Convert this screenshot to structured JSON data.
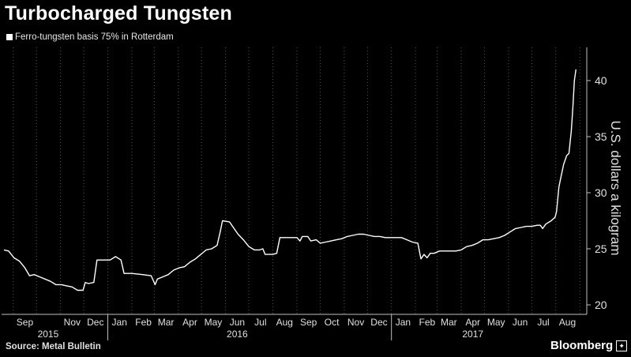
{
  "chart_data": {
    "type": "line",
    "title": "Turbocharged Tungsten",
    "subtitle": "",
    "ylabel": "U.S. dollars a kilogram",
    "xlabel": "",
    "ylim": [
      20,
      42
    ],
    "yticks": [
      20,
      25,
      30,
      35,
      40
    ],
    "ytick_labels": [
      "20",
      "25",
      "30",
      "35",
      "40"
    ],
    "grid": "vertical-dotted",
    "axis_side": "right",
    "month_labels": [
      "Sep",
      "Nov",
      "Dec",
      "Jan",
      "Feb",
      "Mar",
      "Apr",
      "May",
      "Jun",
      "Jul",
      "Aug",
      "Sep",
      "Oct",
      "Nov",
      "Dec",
      "Jan",
      "Feb",
      "Mar",
      "Apr",
      "May",
      "Jun",
      "Jul",
      "Aug"
    ],
    "month_dates": [
      "2015-09-01",
      "2015-11-01",
      "2015-12-01",
      "2016-01-01",
      "2016-02-01",
      "2016-03-01",
      "2016-04-01",
      "2016-05-01",
      "2016-06-01",
      "2016-07-01",
      "2016-08-01",
      "2016-09-01",
      "2016-10-01",
      "2016-11-01",
      "2016-12-01",
      "2017-01-01",
      "2017-02-01",
      "2017-03-01",
      "2017-04-01",
      "2017-05-01",
      "2017-06-01",
      "2017-07-01",
      "2017-08-01"
    ],
    "year_labels": [
      "2015",
      "2016",
      "2017"
    ],
    "year_label_dates": [
      "2015-10-16",
      "2016-06-16",
      "2017-04-16"
    ],
    "year_dividers": [
      "2016-01-01",
      "2017-01-01"
    ],
    "series": [
      {
        "name": "Ferro-tungsten basis 75% in Rotterdam",
        "color": "#ffffff",
        "points": [
          [
            "2015-08-20",
            24.9
          ],
          [
            "2015-08-26",
            24.8
          ],
          [
            "2015-09-02",
            24.2
          ],
          [
            "2015-09-09",
            23.9
          ],
          [
            "2015-09-16",
            23.3
          ],
          [
            "2015-09-22",
            22.6
          ],
          [
            "2015-09-28",
            22.7
          ],
          [
            "2015-10-05",
            22.5
          ],
          [
            "2015-10-12",
            22.3
          ],
          [
            "2015-10-19",
            22.1
          ],
          [
            "2015-10-26",
            21.8
          ],
          [
            "2015-11-02",
            21.8
          ],
          [
            "2015-11-09",
            21.7
          ],
          [
            "2015-11-16",
            21.6
          ],
          [
            "2015-11-23",
            21.3
          ],
          [
            "2015-11-30",
            21.3
          ],
          [
            "2015-12-03",
            22.0
          ],
          [
            "2015-12-07",
            21.9
          ],
          [
            "2015-12-14",
            22.0
          ],
          [
            "2015-12-18",
            24.0
          ],
          [
            "2015-12-28",
            24.0
          ],
          [
            "2016-01-04",
            24.0
          ],
          [
            "2016-01-11",
            24.3
          ],
          [
            "2016-01-18",
            24.0
          ],
          [
            "2016-01-22",
            22.8
          ],
          [
            "2016-02-01",
            22.8
          ],
          [
            "2016-02-15",
            22.7
          ],
          [
            "2016-02-26",
            22.6
          ],
          [
            "2016-03-02",
            21.8
          ],
          [
            "2016-03-05",
            22.3
          ],
          [
            "2016-03-12",
            22.5
          ],
          [
            "2016-03-19",
            22.7
          ],
          [
            "2016-03-26",
            23.1
          ],
          [
            "2016-04-02",
            23.3
          ],
          [
            "2016-04-09",
            23.4
          ],
          [
            "2016-04-16",
            23.8
          ],
          [
            "2016-04-23",
            24.1
          ],
          [
            "2016-04-30",
            24.5
          ],
          [
            "2016-05-07",
            24.9
          ],
          [
            "2016-05-14",
            25.0
          ],
          [
            "2016-05-21",
            25.3
          ],
          [
            "2016-05-25",
            26.5
          ],
          [
            "2016-05-28",
            27.5
          ],
          [
            "2016-06-06",
            27.4
          ],
          [
            "2016-06-10",
            27.0
          ],
          [
            "2016-06-17",
            26.3
          ],
          [
            "2016-06-24",
            25.8
          ],
          [
            "2016-07-01",
            25.2
          ],
          [
            "2016-07-08",
            24.9
          ],
          [
            "2016-07-15",
            24.9
          ],
          [
            "2016-07-19",
            25.0
          ],
          [
            "2016-07-22",
            24.5
          ],
          [
            "2016-08-01",
            24.5
          ],
          [
            "2016-08-06",
            24.6
          ],
          [
            "2016-08-10",
            26.0
          ],
          [
            "2016-08-17",
            26.0
          ],
          [
            "2016-08-24",
            26.0
          ],
          [
            "2016-09-01",
            26.0
          ],
          [
            "2016-09-05",
            25.7
          ],
          [
            "2016-09-08",
            26.1
          ],
          [
            "2016-09-15",
            26.1
          ],
          [
            "2016-09-19",
            25.7
          ],
          [
            "2016-09-26",
            25.8
          ],
          [
            "2016-10-01",
            25.5
          ],
          [
            "2016-10-08",
            25.6
          ],
          [
            "2016-10-15",
            25.7
          ],
          [
            "2016-10-22",
            25.8
          ],
          [
            "2016-10-29",
            25.9
          ],
          [
            "2016-11-05",
            26.1
          ],
          [
            "2016-11-12",
            26.2
          ],
          [
            "2016-11-19",
            26.3
          ],
          [
            "2016-11-26",
            26.3
          ],
          [
            "2016-12-03",
            26.2
          ],
          [
            "2016-12-10",
            26.1
          ],
          [
            "2016-12-17",
            26.1
          ],
          [
            "2016-12-24",
            26.0
          ],
          [
            "2016-12-31",
            26.0
          ],
          [
            "2017-01-07",
            26.0
          ],
          [
            "2017-01-14",
            26.0
          ],
          [
            "2017-01-21",
            25.8
          ],
          [
            "2017-01-28",
            25.6
          ],
          [
            "2017-02-04",
            25.5
          ],
          [
            "2017-02-08",
            24.1
          ],
          [
            "2017-02-12",
            24.5
          ],
          [
            "2017-02-16",
            24.2
          ],
          [
            "2017-02-20",
            24.6
          ],
          [
            "2017-02-25",
            24.6
          ],
          [
            "2017-03-04",
            24.8
          ],
          [
            "2017-03-11",
            24.8
          ],
          [
            "2017-03-18",
            24.8
          ],
          [
            "2017-03-25",
            24.8
          ],
          [
            "2017-04-01",
            24.9
          ],
          [
            "2017-04-08",
            25.2
          ],
          [
            "2017-04-15",
            25.3
          ],
          [
            "2017-04-22",
            25.5
          ],
          [
            "2017-04-29",
            25.8
          ],
          [
            "2017-05-06",
            25.8
          ],
          [
            "2017-05-13",
            25.9
          ],
          [
            "2017-05-20",
            26.0
          ],
          [
            "2017-05-27",
            26.2
          ],
          [
            "2017-06-03",
            26.5
          ],
          [
            "2017-06-10",
            26.8
          ],
          [
            "2017-06-17",
            26.9
          ],
          [
            "2017-06-24",
            27.0
          ],
          [
            "2017-07-01",
            27.0
          ],
          [
            "2017-07-08",
            27.1
          ],
          [
            "2017-07-12",
            27.1
          ],
          [
            "2017-07-15",
            26.8
          ],
          [
            "2017-07-19",
            27.2
          ],
          [
            "2017-07-26",
            27.5
          ],
          [
            "2017-07-31",
            27.8
          ],
          [
            "2017-08-02",
            28.3
          ],
          [
            "2017-08-05",
            30.5
          ],
          [
            "2017-08-08",
            31.5
          ],
          [
            "2017-08-11",
            32.5
          ],
          [
            "2017-08-15",
            33.3
          ],
          [
            "2017-08-18",
            33.5
          ],
          [
            "2017-08-21",
            35.5
          ],
          [
            "2017-08-23",
            37.5
          ],
          [
            "2017-08-25",
            40.0
          ],
          [
            "2017-08-27",
            41.0
          ]
        ]
      }
    ]
  },
  "source": "Source: Metal Bulletin",
  "brand": "Bloomberg",
  "brand_icon": "bloomberg-logo-icon",
  "colors": {
    "background": "#000000",
    "line": "#ffffff",
    "axis": "#bfbfbf",
    "grid": "#555555"
  }
}
